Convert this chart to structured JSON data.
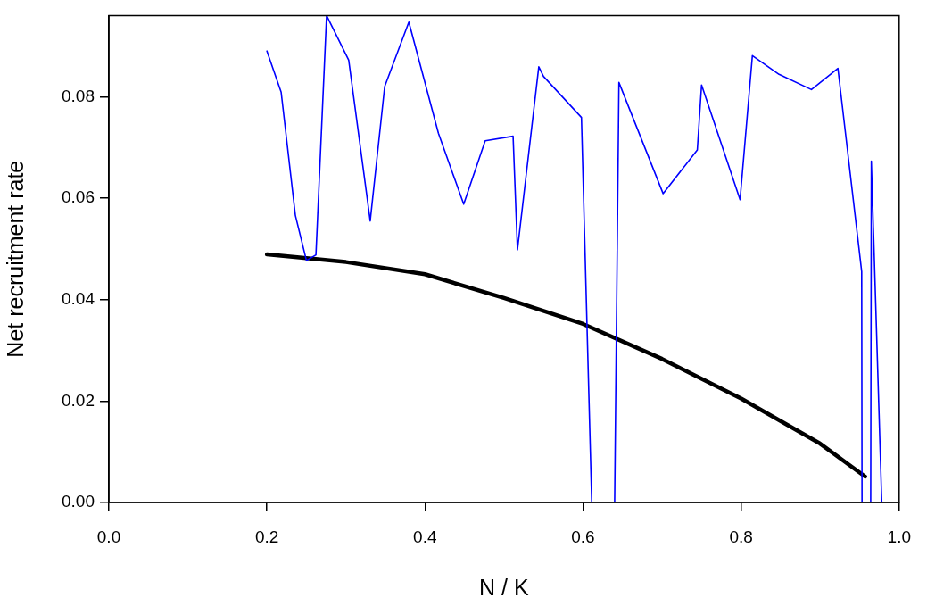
{
  "chart_data": {
    "type": "line",
    "xlabel": "N / K",
    "ylabel": "Net recruitment rate",
    "xlim": [
      0,
      1
    ],
    "xticks": [
      {
        "value": 0,
        "label": "0.0"
      },
      {
        "value": 0.2,
        "label": "0.2"
      },
      {
        "value": 0.4,
        "label": "0.4"
      },
      {
        "value": 0.6,
        "label": "0.6"
      },
      {
        "value": 0.8,
        "label": "0.8"
      },
      {
        "value": 1,
        "label": "1.0"
      }
    ],
    "ylim": [
      0,
      0.096
    ],
    "yticks": [
      {
        "value": 0,
        "label": "0.00"
      },
      {
        "value": 0.02,
        "label": "0.02"
      },
      {
        "value": 0.04,
        "label": "0.04"
      },
      {
        "value": 0.06,
        "label": "0.06"
      },
      {
        "value": 0.08,
        "label": "0.08"
      }
    ],
    "grid": false,
    "series": [
      {
        "color": "#0000ff",
        "x": [
          0.2,
          0.218,
          0.236,
          0.25,
          0.262,
          0.2755,
          0.3035,
          0.3307,
          0.349,
          0.3796,
          0.417,
          0.449,
          0.4762,
          0.5115,
          0.517,
          0.544,
          0.55,
          0.598,
          0.611,
          0.64,
          0.6454,
          0.7013,
          0.7446,
          0.75,
          0.7987,
          0.8143,
          0.848,
          0.889,
          0.9225,
          0.9526,
          0.953,
          0.964,
          0.9648,
          0.978
        ],
        "values": [
          0.089,
          0.0809,
          0.0566,
          0.0477,
          0.0488,
          0.096,
          0.0872,
          0.0555,
          0.082,
          0.0947,
          0.0728,
          0.0588,
          0.0713,
          0.0722,
          0.0498,
          0.0859,
          0.084,
          0.0759,
          0,
          0,
          0.0828,
          0.0609,
          0.0695,
          0.0823,
          0.0597,
          0.0881,
          0.0844,
          0.0814,
          0.0856,
          0.0455,
          0,
          0,
          0.0673,
          0
        ]
      },
      {
        "color": "#000000",
        "x": [
          0.2,
          0.3,
          0.4,
          0.5,
          0.6,
          0.7,
          0.8,
          0.9,
          0.957
        ],
        "values": [
          0.0489,
          0.0474,
          0.045,
          0.0403,
          0.0352,
          0.0283,
          0.0205,
          0.0116,
          0.0051
        ]
      }
    ]
  }
}
